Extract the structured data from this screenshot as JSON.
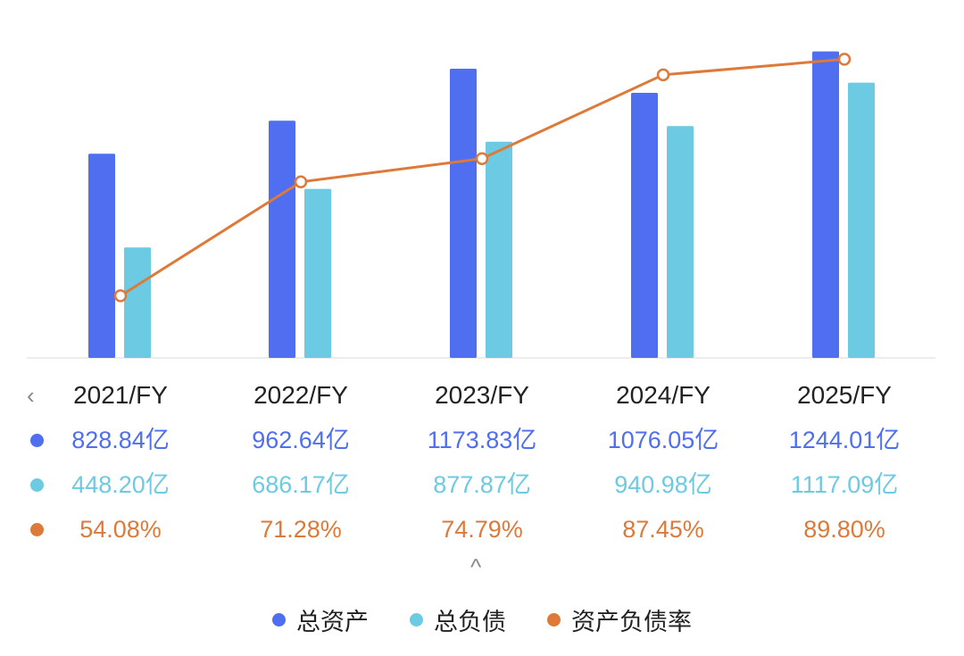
{
  "chart_data": {
    "type": "bar",
    "categories": [
      "2021/FY",
      "2022/FY",
      "2023/FY",
      "2024/FY",
      "2025/FY"
    ],
    "series": [
      {
        "name": "总资产",
        "kind": "bar",
        "color": "#4f6ef0",
        "values": [
          828.84,
          962.64,
          1173.83,
          1076.05,
          1244.01
        ],
        "labels": [
          "828.84亿",
          "962.64亿",
          "1173.83亿",
          "1076.05亿",
          "1244.01亿"
        ]
      },
      {
        "name": "总负债",
        "kind": "bar",
        "color": "#6ccbe2",
        "values": [
          448.2,
          686.17,
          877.87,
          940.98,
          1117.09
        ],
        "labels": [
          "448.20亿",
          "686.17亿",
          "877.87亿",
          "940.98亿",
          "1117.09亿"
        ]
      },
      {
        "name": "资产负债率",
        "kind": "line",
        "color": "#dd7a3a",
        "values": [
          54.08,
          71.28,
          74.79,
          87.45,
          89.8
        ],
        "labels": [
          "54.08%",
          "71.28%",
          "74.79%",
          "87.45%",
          "89.80%"
        ]
      }
    ],
    "bar_ylim": [
      0,
      1250
    ],
    "line_ylim": [
      48.6,
      91.2
    ],
    "legend_position": "bottom"
  },
  "icons": {
    "left_chevron": "‹",
    "up_chevron": "^"
  }
}
